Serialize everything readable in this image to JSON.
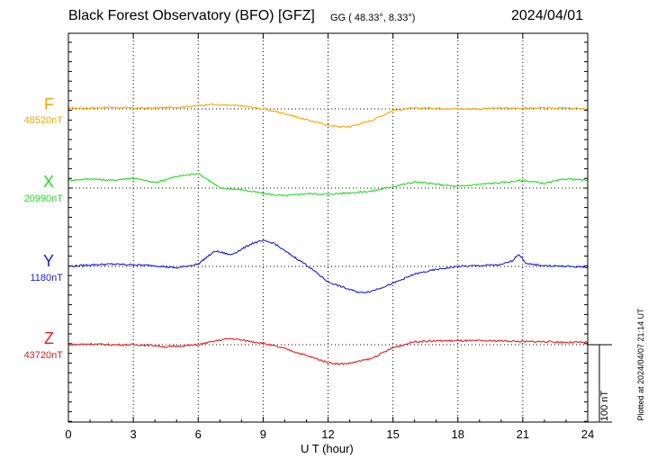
{
  "title": "Black Forest Observatory (BFO)  [GFZ]",
  "coords": "GG ( 48.33°,   8.33°)",
  "date": "2024/04/01",
  "xlabel": "U T (hour)",
  "scale_label": "100 nT",
  "plotted": "Plotted at 2024/04/07 21:14 UT",
  "chart_data": {
    "type": "line",
    "x_ticks": [
      "0",
      "3",
      "6",
      "9",
      "12",
      "15",
      "18",
      "21",
      "24"
    ],
    "xlim": [
      0,
      24
    ],
    "scale_bar_nT": 100,
    "grid": true,
    "series": [
      {
        "name": "F",
        "baseline_label": "48520nT",
        "color": "#f5a800",
        "x": [
          0,
          1,
          2,
          3,
          4,
          5,
          6,
          6.5,
          7,
          8,
          9,
          10,
          11,
          12,
          12.5,
          13,
          14,
          15,
          16,
          17,
          18,
          19,
          20,
          21,
          22,
          23,
          24
        ],
        "y": [
          48521,
          48521,
          48522,
          48521,
          48521,
          48522,
          48524,
          48526,
          48525,
          48524,
          48520,
          48514,
          48506,
          48499,
          48497,
          48497,
          48505,
          48518,
          48521,
          48521,
          48520,
          48520,
          48521,
          48521,
          48521,
          48521,
          48520
        ]
      },
      {
        "name": "X",
        "baseline_label": "20990nT",
        "color": "#22dd22",
        "x": [
          0,
          1,
          2,
          3,
          4,
          5,
          6,
          6.5,
          7,
          8,
          9,
          10,
          11,
          12,
          13,
          14,
          15,
          16,
          17,
          18,
          19,
          20,
          21,
          22,
          23,
          24
        ],
        "y": [
          21000,
          21002,
          21000,
          21003,
          20997,
          21005,
          21009,
          21000,
          20990,
          20988,
          20983,
          20980,
          20983,
          20982,
          20984,
          20986,
          20992,
          20998,
          20995,
          20992,
          20995,
          20997,
          21000,
          20996,
          21002,
          21000
        ]
      },
      {
        "name": "Y",
        "baseline_label": "1180nT",
        "color": "#1c1ce0",
        "x": [
          0,
          1,
          2,
          3,
          4,
          5,
          6,
          6.3,
          6.8,
          7.5,
          8,
          8.5,
          9,
          9.5,
          10,
          11,
          12,
          13,
          13.5,
          14,
          15,
          16,
          17,
          18,
          19,
          20,
          20.5,
          20.8,
          21.2,
          22,
          23,
          24
        ],
        "y": [
          1180,
          1182,
          1183,
          1182,
          1181,
          1178,
          1183,
          1190,
          1200,
          1195,
          1202,
          1210,
          1213,
          1210,
          1200,
          1182,
          1160,
          1150,
          1146,
          1148,
          1158,
          1170,
          1176,
          1180,
          1181,
          1182,
          1187,
          1196,
          1183,
          1181,
          1180,
          1179
        ]
      },
      {
        "name": "Z",
        "baseline_label": "43720nT",
        "color": "#e02020",
        "x": [
          0,
          1,
          2,
          3,
          4,
          4.5,
          5,
          6,
          7,
          7.5,
          8,
          9,
          10,
          11,
          12,
          12.5,
          13,
          14,
          15,
          16,
          17,
          18,
          19,
          20,
          21,
          22,
          23,
          24
        ],
        "y": [
          43720,
          43721,
          43720,
          43720,
          43719,
          43717,
          43718,
          43720,
          43726,
          43728,
          43726,
          43722,
          43715,
          43706,
          43697,
          43695,
          43696,
          43702,
          43716,
          43724,
          43725,
          43725,
          43725,
          43725,
          43724,
          43724,
          43723,
          43723
        ]
      }
    ]
  }
}
